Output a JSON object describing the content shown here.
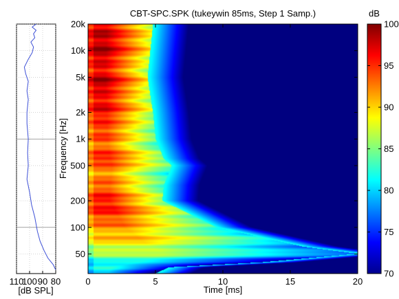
{
  "chart_data": [
    {
      "type": "line",
      "panel": "frequency-response-side",
      "xlabel": "[dB SPL]",
      "x_ticks": [
        110,
        100,
        90,
        80
      ],
      "x_tick_labels": [
        "110",
        "100",
        "90",
        "80"
      ],
      "xlim": [
        110,
        80
      ],
      "x_reversed": true,
      "y_scale": "log",
      "ylim": [
        30,
        22000
      ],
      "series_color": "#3c4fd6",
      "series": [
        {
          "points": [
            {
              "freq": 22000,
              "spl": 97
            },
            {
              "freq": 20000,
              "spl": 95
            },
            {
              "freq": 18500,
              "spl": 98
            },
            {
              "freq": 17000,
              "spl": 95
            },
            {
              "freq": 15500,
              "spl": 97
            },
            {
              "freq": 14000,
              "spl": 96
            },
            {
              "freq": 12500,
              "spl": 99
            },
            {
              "freq": 11000,
              "spl": 97
            },
            {
              "freq": 9500,
              "spl": 98
            },
            {
              "freq": 8000,
              "spl": 101
            },
            {
              "freq": 6500,
              "spl": 104
            },
            {
              "freq": 5500,
              "spl": 103
            },
            {
              "freq": 4500,
              "spl": 101
            },
            {
              "freq": 3500,
              "spl": 102
            },
            {
              "freq": 2800,
              "spl": 101
            },
            {
              "freq": 2000,
              "spl": 102
            },
            {
              "freq": 1500,
              "spl": 102
            },
            {
              "freq": 1000,
              "spl": 101
            },
            {
              "freq": 700,
              "spl": 101.5
            },
            {
              "freq": 500,
              "spl": 101
            },
            {
              "freq": 350,
              "spl": 102
            },
            {
              "freq": 250,
              "spl": 100
            },
            {
              "freq": 180,
              "spl": 98.5
            },
            {
              "freq": 130,
              "spl": 96
            },
            {
              "freq": 90,
              "spl": 94
            },
            {
              "freq": 70,
              "spl": 92
            },
            {
              "freq": 55,
              "spl": 89
            },
            {
              "freq": 45,
              "spl": 86
            },
            {
              "freq": 38,
              "spl": 82
            },
            {
              "freq": 33,
              "spl": 80
            }
          ]
        }
      ]
    },
    {
      "type": "heatmap",
      "panel": "spectrogram",
      "title": "CBT-SPC.SPK (tukeywin 85ms, Step 1 Samp.)",
      "xlabel": "Time [ms]",
      "ylabel": "Frequency [Hz]",
      "xlim": [
        0,
        20
      ],
      "x_ticks": [
        0,
        5,
        10,
        15,
        20
      ],
      "x_tick_labels": [
        "0",
        "5",
        "10",
        "15",
        "20"
      ],
      "y_scale": "log",
      "ylim": [
        30,
        20000
      ],
      "y_ticks": [
        50,
        100,
        200,
        500,
        1000,
        2000,
        5000,
        10000,
        20000
      ],
      "y_tick_labels": [
        "50",
        "100",
        "200",
        "500",
        "1k",
        "2k",
        "5k",
        "10k",
        "20k"
      ],
      "value_range": [
        70,
        100
      ],
      "value_unit_label": "dB",
      "colorbar_ticks": [
        70,
        75,
        80,
        85,
        90,
        95,
        100
      ],
      "colorbar_tick_labels": [
        "70",
        "75",
        "80",
        "85",
        "90",
        "95",
        "100"
      ],
      "colormap": "jet",
      "decay_front_ms": [
        {
          "freq": 20000,
          "t": 4.8
        },
        {
          "freq": 10000,
          "t": 4.6
        },
        {
          "freq": 5000,
          "t": 4.4
        },
        {
          "freq": 2000,
          "t": 4.8
        },
        {
          "freq": 1000,
          "t": 5.0
        },
        {
          "freq": 600,
          "t": 5.6
        },
        {
          "freq": 500,
          "t": 6.2
        },
        {
          "freq": 300,
          "t": 5.6
        },
        {
          "freq": 200,
          "t": 5.5
        },
        {
          "freq": 100,
          "t": 9.5
        },
        {
          "freq": 60,
          "t": 16.0
        },
        {
          "freq": 50,
          "t": 20.0
        },
        {
          "freq": 40,
          "t": 13.0
        },
        {
          "freq": 35,
          "t": 6.0
        },
        {
          "freq": 30,
          "t": 5.0
        }
      ]
    }
  ]
}
